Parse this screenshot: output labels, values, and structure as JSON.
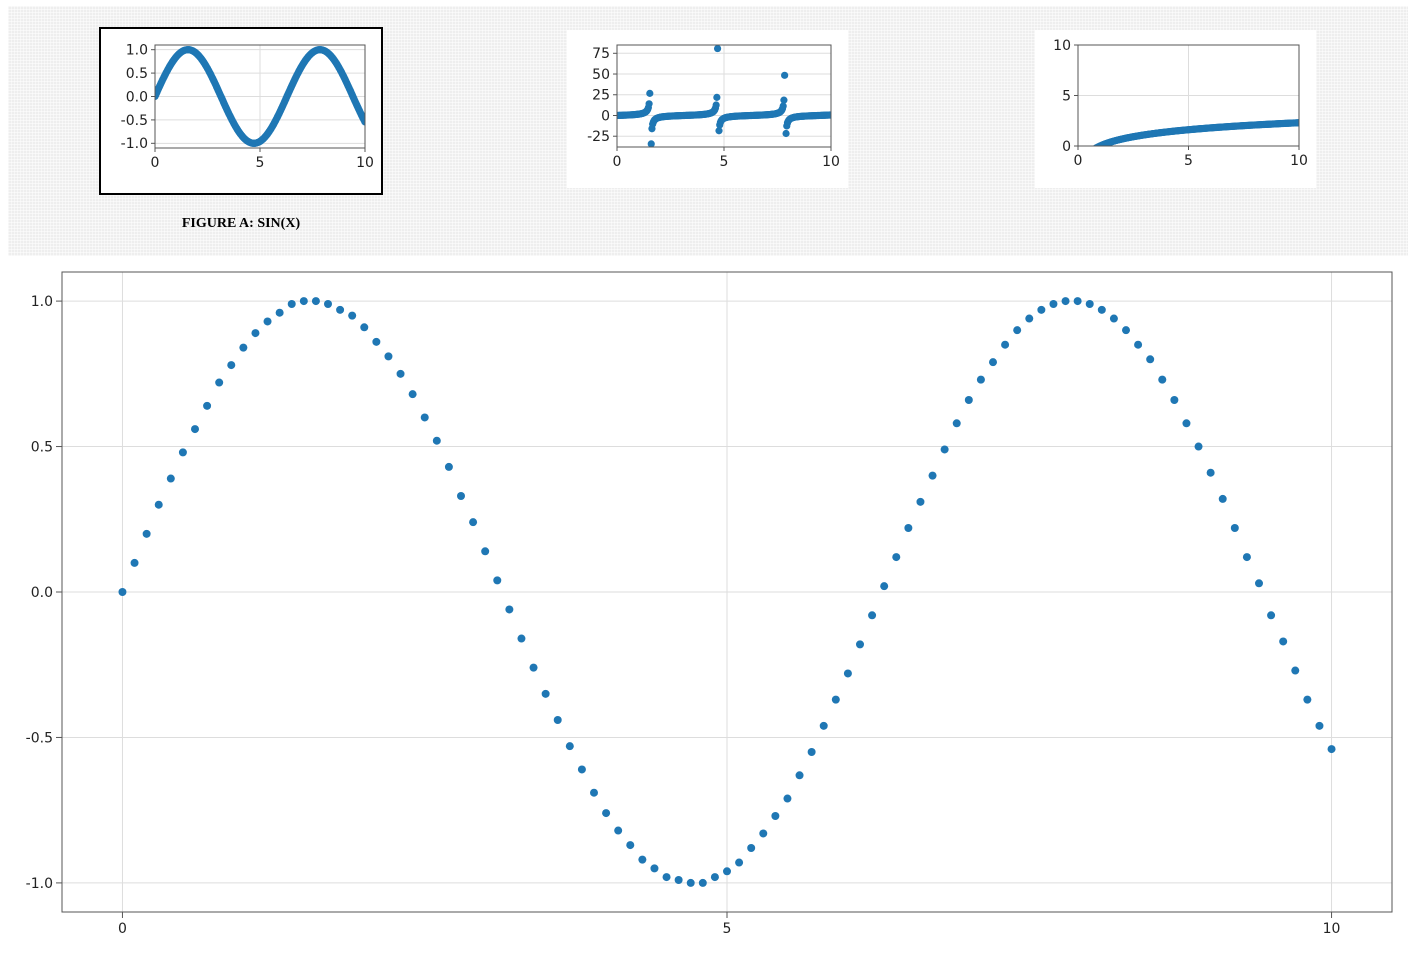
{
  "gallery": {
    "thumbnails": [
      {
        "id": "sin",
        "caption": "FIGURE A: SIN(X)",
        "selected": true
      },
      {
        "id": "tan",
        "caption": "",
        "selected": false
      },
      {
        "id": "log",
        "caption": "",
        "selected": false
      }
    ]
  },
  "colors": {
    "marker": "#1f77b4",
    "grid": "#dddddd",
    "frame": "#555555",
    "selected_border": "#000000"
  },
  "chart_data": [
    {
      "name": "thumbnail-sin",
      "type": "scatter",
      "function": "sin(x)",
      "xlim": [
        0,
        10
      ],
      "ylim": [
        -1.1,
        1.1
      ],
      "x_ticks": [
        "0",
        "5",
        "10"
      ],
      "y_ticks": [
        "-1.0",
        "-0.5",
        "0.0",
        "0.5",
        "1.0"
      ],
      "grid": true,
      "title": "",
      "xlabel": "",
      "ylabel": ""
    },
    {
      "name": "thumbnail-tan",
      "type": "scatter",
      "function": "tan(x)",
      "xlim": [
        0,
        10
      ],
      "ylim": [
        -38,
        85
      ],
      "x_ticks": [
        "0",
        "5",
        "10"
      ],
      "y_ticks": [
        "-25",
        "0",
        "25",
        "50",
        "75"
      ],
      "grid": true,
      "title": "",
      "xlabel": "",
      "ylabel": ""
    },
    {
      "name": "thumbnail-log",
      "type": "scatter",
      "function": "log(x)",
      "xlim": [
        0,
        10
      ],
      "ylim": [
        0,
        10
      ],
      "x_ticks": [
        "0",
        "5",
        "10"
      ],
      "y_ticks": [
        "0",
        "5",
        "10"
      ],
      "grid": true,
      "title": "",
      "xlabel": "",
      "ylabel": ""
    },
    {
      "name": "main-sin",
      "type": "scatter",
      "function": "sin(x)",
      "x": [
        0.0,
        0.1,
        0.2,
        0.3,
        0.4,
        0.5,
        0.6,
        0.7,
        0.8,
        0.9,
        1.0,
        1.1,
        1.2,
        1.3,
        1.4,
        1.5,
        1.6,
        1.7,
        1.8,
        1.9,
        2.0,
        2.1,
        2.2,
        2.3,
        2.4,
        2.5,
        2.6,
        2.7,
        2.8,
        2.9,
        3.0,
        3.1,
        3.2,
        3.3,
        3.4,
        3.5,
        3.6,
        3.7,
        3.8,
        3.9,
        4.0,
        4.1,
        4.2,
        4.3,
        4.4,
        4.5,
        4.6,
        4.7,
        4.8,
        4.9,
        5.0,
        5.1,
        5.2,
        5.3,
        5.4,
        5.5,
        5.6,
        5.7,
        5.8,
        5.9,
        6.0,
        6.1,
        6.2,
        6.3,
        6.4,
        6.5,
        6.6,
        6.7,
        6.8,
        6.9,
        7.0,
        7.1,
        7.2,
        7.3,
        7.4,
        7.5,
        7.6,
        7.7,
        7.8,
        7.9,
        8.0,
        8.1,
        8.2,
        8.3,
        8.4,
        8.5,
        8.6,
        8.7,
        8.8,
        8.9,
        9.0,
        9.1,
        9.2,
        9.3,
        9.4,
        9.5,
        9.6,
        9.7,
        9.8,
        9.9,
        10.0
      ],
      "y": [
        0.0,
        0.1,
        0.2,
        0.3,
        0.39,
        0.48,
        0.56,
        0.64,
        0.72,
        0.78,
        0.84,
        0.89,
        0.93,
        0.96,
        0.99,
        1.0,
        1.0,
        0.99,
        0.97,
        0.95,
        0.91,
        0.86,
        0.81,
        0.75,
        0.68,
        0.6,
        0.52,
        0.43,
        0.33,
        0.24,
        0.14,
        0.04,
        -0.06,
        -0.16,
        -0.26,
        -0.35,
        -0.44,
        -0.53,
        -0.61,
        -0.69,
        -0.76,
        -0.82,
        -0.87,
        -0.92,
        -0.95,
        -0.98,
        -0.99,
        -1.0,
        -1.0,
        -0.98,
        -0.96,
        -0.93,
        -0.88,
        -0.83,
        -0.77,
        -0.71,
        -0.63,
        -0.55,
        -0.46,
        -0.37,
        -0.28,
        -0.18,
        -0.08,
        0.02,
        0.12,
        0.22,
        0.31,
        0.4,
        0.49,
        0.58,
        0.66,
        0.73,
        0.79,
        0.85,
        0.9,
        0.94,
        0.97,
        0.99,
        1.0,
        1.0,
        0.99,
        0.97,
        0.94,
        0.9,
        0.85,
        0.8,
        0.73,
        0.66,
        0.58,
        0.5,
        0.41,
        0.32,
        0.22,
        0.12,
        0.03,
        -0.08,
        -0.17,
        -0.27,
        -0.37,
        -0.46,
        -0.54
      ],
      "xlim": [
        -0.5,
        10.5
      ],
      "ylim": [
        -1.1,
        1.1
      ],
      "x_ticks": [
        "0",
        "5",
        "10"
      ],
      "y_ticks": [
        "-1.0",
        "-0.5",
        "0.0",
        "0.5",
        "1.0"
      ],
      "grid": true,
      "title": "",
      "xlabel": "",
      "ylabel": ""
    }
  ]
}
